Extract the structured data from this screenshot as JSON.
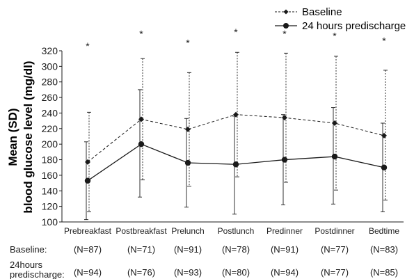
{
  "chart_data": {
    "type": "line",
    "ylabel_line1": "Mean (SD)",
    "ylabel_line2": "blood glucose level (mg/dl)",
    "ylim": [
      100,
      320
    ],
    "yticks": [
      "100",
      "120",
      "140",
      "160",
      "180",
      "200",
      "220",
      "240",
      "260",
      "280",
      "300",
      "320"
    ],
    "categories": [
      "Prebreakfast",
      "Postbreakfast",
      "Prelunch",
      "Postlunch",
      "Predinner",
      "Postdinner",
      "Bedtime"
    ],
    "legend_position": "top-right",
    "series": [
      {
        "name": "Baseline",
        "line_style": "dashed",
        "marker": "diamond",
        "values": [
          177,
          232,
          219,
          238,
          234,
          227,
          211
        ],
        "upper": [
          241,
          310,
          292,
          318,
          317,
          313,
          295
        ],
        "lower": [
          113,
          154,
          146,
          158,
          151,
          141,
          128
        ]
      },
      {
        "name": "24 hours predischarge",
        "line_style": "solid",
        "marker": "circle",
        "values": [
          153,
          200,
          176,
          174,
          180,
          184,
          170
        ],
        "upper": [
          203,
          270,
          233,
          236,
          238,
          247,
          227
        ],
        "lower": [
          103,
          132,
          119,
          110,
          122,
          123,
          113
        ]
      }
    ],
    "significance_mark": "*",
    "significance_y": [
      327,
      343,
      331,
      345,
      343,
      340,
      334
    ],
    "count_rows": [
      {
        "label": "Baseline:",
        "counts": [
          "(N=87)",
          "(N=71)",
          "(N=91)",
          "(N=78)",
          "(N=91)",
          "(N=77)",
          "(N=83)"
        ]
      },
      {
        "label_line1": "24hours",
        "label_line2": "predischarge:",
        "counts": [
          "(N=94)",
          "(N=76)",
          "(N=93)",
          "(N=80)",
          "(N=94)",
          "(N=77)",
          "(N=85)"
        ]
      }
    ]
  }
}
